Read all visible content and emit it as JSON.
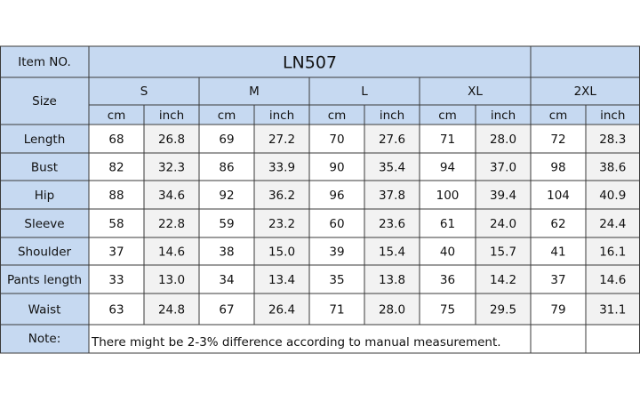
{
  "table": {
    "item_label": "Item NO.",
    "item_no": "LN507",
    "size_label": "Size",
    "sizes": [
      "S",
      "M",
      "L",
      "XL",
      "2XL"
    ],
    "units": [
      "cm",
      "inch"
    ],
    "rows": [
      {
        "label": "Length",
        "values": [
          "68",
          "26.8",
          "69",
          "27.2",
          "70",
          "27.6",
          "71",
          "28.0",
          "72",
          "28.3"
        ]
      },
      {
        "label": "Bust",
        "values": [
          "82",
          "32.3",
          "86",
          "33.9",
          "90",
          "35.4",
          "94",
          "37.0",
          "98",
          "38.6"
        ]
      },
      {
        "label": "Hip",
        "values": [
          "88",
          "34.6",
          "92",
          "36.2",
          "96",
          "37.8",
          "100",
          "39.4",
          "104",
          "40.9"
        ]
      },
      {
        "label": "Sleeve",
        "values": [
          "58",
          "22.8",
          "59",
          "23.2",
          "60",
          "23.6",
          "61",
          "24.0",
          "62",
          "24.4"
        ]
      },
      {
        "label": "Shoulder",
        "values": [
          "37",
          "14.6",
          "38",
          "15.0",
          "39",
          "15.4",
          "40",
          "15.7",
          "41",
          "16.1"
        ]
      },
      {
        "label": "Pants length",
        "values": [
          "33",
          "13.0",
          "34",
          "13.4",
          "35",
          "13.8",
          "36",
          "14.2",
          "37",
          "14.6"
        ]
      },
      {
        "label": "Waist",
        "values": [
          "63",
          "24.8",
          "67",
          "26.4",
          "71",
          "28.0",
          "75",
          "29.5",
          "79",
          "31.1"
        ]
      }
    ],
    "note_label": "Note:",
    "note": "There might be 2-3% difference according to manual measurement."
  }
}
